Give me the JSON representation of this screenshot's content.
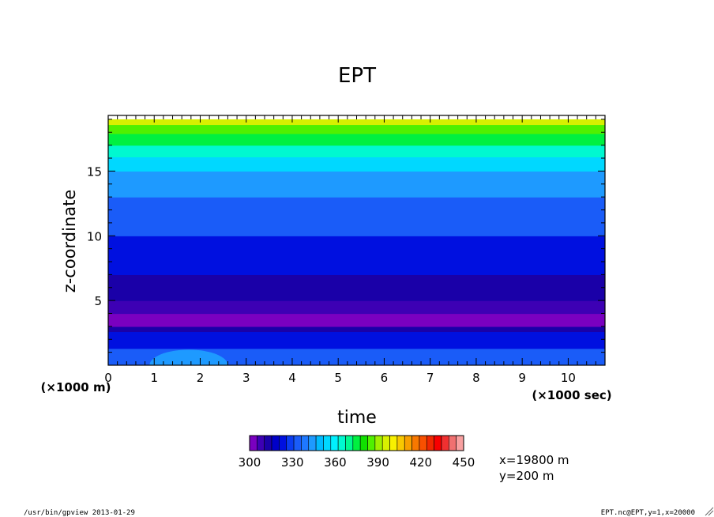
{
  "chart_data": {
    "type": "heatmap",
    "title": "EPT",
    "xlabel": "time",
    "xunit_label": "(×1000 sec)",
    "ylabel": "z-coordinate",
    "yunit_label": "(×1000 m)",
    "xlim": [
      0,
      10.8
    ],
    "ylim": [
      0,
      19.3
    ],
    "x_ticks": [
      "0",
      "1",
      "2",
      "3",
      "4",
      "5",
      "6",
      "7",
      "8",
      "9",
      "10"
    ],
    "y_ticks": [
      "5",
      "10",
      "15"
    ],
    "colorbar": {
      "min": 300,
      "max": 450,
      "step": 7.5,
      "tick_labels": [
        "300",
        "330",
        "360",
        "390",
        "420",
        "450"
      ],
      "colors": [
        "#7a00c0",
        "#3d00b4",
        "#1a00a8",
        "#0000c8",
        "#0010e0",
        "#0a3cf0",
        "#1a5cf8",
        "#1e78ff",
        "#1e9aff",
        "#00baff",
        "#00d8ff",
        "#00f0ff",
        "#00f8d0",
        "#00f890",
        "#00f040",
        "#10e000",
        "#50f000",
        "#a0f000",
        "#d8f000",
        "#f8f000",
        "#f8c800",
        "#f8a000",
        "#f87800",
        "#f85000",
        "#f02800",
        "#f80000",
        "#f03030",
        "#f07070",
        "#f8a0a0"
      ]
    },
    "z_profile": [
      {
        "z": [
          0.0,
          0.8
        ],
        "value": 352
      },
      {
        "z": [
          0.8,
          1.3
        ],
        "value": 345
      },
      {
        "z": [
          1.3,
          2.0
        ],
        "value": 337
      },
      {
        "z": [
          2.0,
          2.6
        ],
        "value": 330
      },
      {
        "z": [
          2.6,
          3.0
        ],
        "value": 322
      },
      {
        "z": [
          3.0,
          4.0
        ],
        "value": 305
      },
      {
        "z": [
          4.0,
          5.0
        ],
        "value": 310
      },
      {
        "z": [
          5.0,
          6.0
        ],
        "value": 315
      },
      {
        "z": [
          6.0,
          7.0
        ],
        "value": 322
      },
      {
        "z": [
          7.0,
          8.0
        ],
        "value": 330
      },
      {
        "z": [
          8.0,
          10.0
        ],
        "value": 337
      },
      {
        "z": [
          10.0,
          11.8
        ],
        "value": 345
      },
      {
        "z": [
          11.8,
          13.0
        ],
        "value": 352
      },
      {
        "z": [
          13.0,
          14.2
        ],
        "value": 360
      },
      {
        "z": [
          14.2,
          15.0
        ],
        "value": 367
      },
      {
        "z": [
          15.0,
          15.5
        ],
        "value": 375
      },
      {
        "z": [
          15.5,
          16.1
        ],
        "value": 382
      },
      {
        "z": [
          16.1,
          16.6
        ],
        "value": 390
      },
      {
        "z": [
          16.6,
          17.0
        ],
        "value": 397
      },
      {
        "z": [
          17.0,
          17.4
        ],
        "value": 405
      },
      {
        "z": [
          17.4,
          17.9
        ],
        "value": 412
      },
      {
        "z": [
          17.9,
          18.3
        ],
        "value": 420
      },
      {
        "z": [
          18.3,
          18.6
        ],
        "value": 427
      },
      {
        "z": [
          18.6,
          18.9
        ],
        "value": 435
      },
      {
        "z": [
          18.9,
          19.0
        ],
        "value": 442
      }
    ],
    "features": [
      {
        "name": "low-level warm patch",
        "x": [
          0.9,
          2.6
        ],
        "z": [
          0.0,
          1.2
        ],
        "value": 367
      }
    ],
    "slice_info": [
      "x=19800 m",
      "y=200 m"
    ]
  },
  "footer": {
    "left": "/usr/bin/gpview  2013-01-29",
    "right": "EPT.nc@EPT,y=1,x=20000"
  }
}
